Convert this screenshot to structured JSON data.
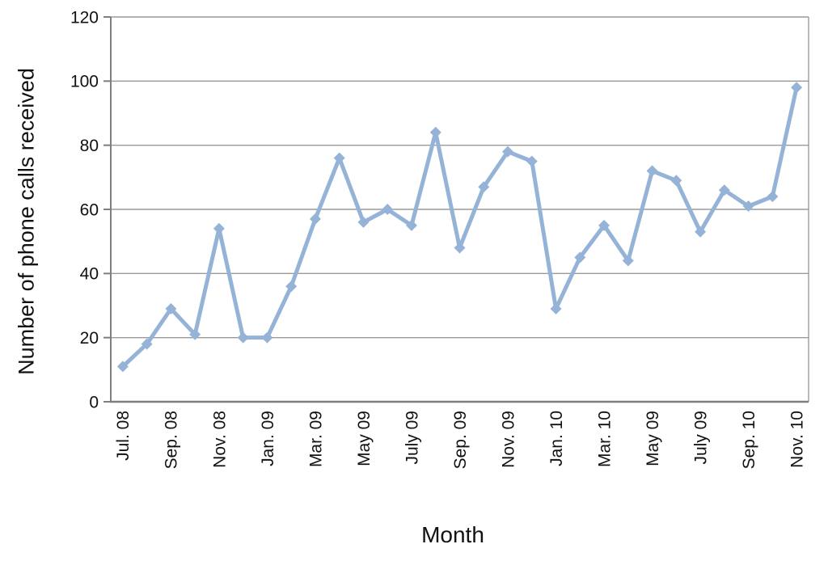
{
  "chart_data": {
    "type": "line",
    "title": "",
    "xlabel": "Month",
    "ylabel": "Number of phone calls received",
    "ylim": [
      0,
      120
    ],
    "y_ticks": [
      0,
      20,
      40,
      60,
      80,
      100,
      120
    ],
    "grid": "horizontal",
    "legend_position": "none",
    "x_tick_labels": [
      "Jul. 08",
      "Sep. 08",
      "Nov. 08",
      "Jan. 09",
      "Mar. 09",
      "May 09",
      "July 09",
      "Sep. 09",
      "Nov. 09",
      "Jan. 10",
      "Mar. 10",
      "May 09",
      "July 09",
      "Sep. 10",
      "Nov. 10"
    ],
    "x_tick_label_rotation_deg": 90,
    "x_labels_every_n_points": 2,
    "series": [
      {
        "name": "Number of phone calls received",
        "marker": "diamond",
        "color": "#95B3D7",
        "values": [
          11,
          18,
          29,
          21,
          54,
          20,
          20,
          36,
          57,
          76,
          56,
          60,
          55,
          84,
          48,
          67,
          78,
          75,
          29,
          45,
          55,
          44,
          72,
          69,
          53,
          66,
          61,
          64,
          98
        ]
      }
    ]
  },
  "colors": {
    "line": "#95B3D7",
    "gridline": "#9a9a9a",
    "axis": "#7f7f7f",
    "text": "#111111"
  }
}
